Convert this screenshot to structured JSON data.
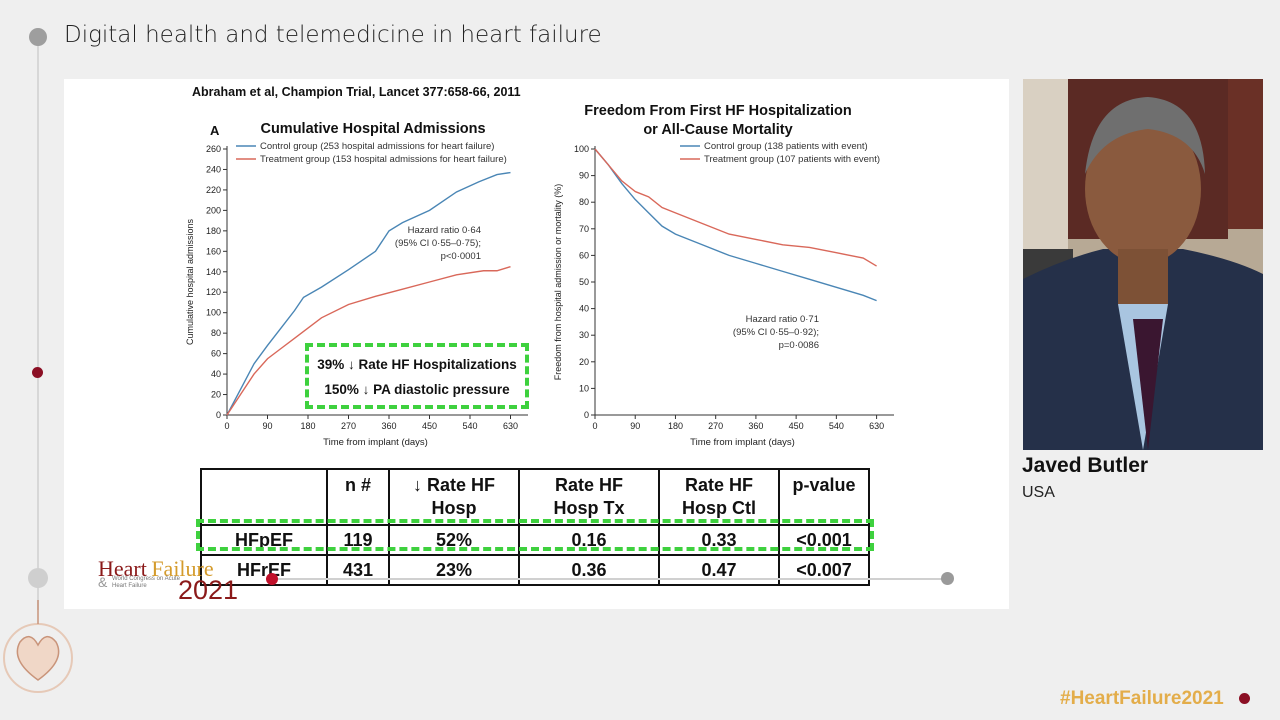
{
  "header": {
    "title": "Digital health and telemedicine in heart failure"
  },
  "slide": {
    "citation": "Abraham et al, Champion Trial, Lancet 377:658-66, 2011",
    "callout": {
      "line1": "39% ↓ Rate HF Hospitalizations",
      "line2": "150% ↓ PA diastolic pressure"
    },
    "table": {
      "headers": [
        "",
        "n #",
        "↓ Rate HF Hosp",
        "Rate HF Hosp Tx",
        "Rate HF Hosp Ctl",
        "p-value"
      ],
      "header_lines": [
        [
          "",
          ""
        ],
        [
          "n #",
          ""
        ],
        [
          "↓ Rate HF",
          "Hosp"
        ],
        [
          "Rate HF",
          "Hosp Tx"
        ],
        [
          "Rate HF",
          "Hosp Ctl"
        ],
        [
          "p-value",
          ""
        ]
      ],
      "rows": [
        [
          "HFpEF",
          "119",
          "52%",
          "0.16",
          "0.33",
          "<0.001"
        ],
        [
          "HFrEF",
          "431",
          "23%",
          "0.36",
          "0.47",
          "<0.007"
        ]
      ]
    }
  },
  "chart_data": [
    {
      "type": "line",
      "panel_label": "A",
      "title": "Cumulative Hospital Admissions",
      "xlabel": "Time from implant (days)",
      "ylabel": "Cumulative hospital admissions",
      "xticks": [
        0,
        90,
        180,
        270,
        360,
        450,
        540,
        630
      ],
      "yticks": [
        0,
        20,
        40,
        60,
        80,
        100,
        120,
        140,
        160,
        180,
        200,
        220,
        240,
        260
      ],
      "xlim": [
        0,
        660
      ],
      "ylim": [
        0,
        260
      ],
      "annotation": [
        "Hazard ratio 0·64",
        "(95% CI 0·55–0·75);",
        "p<0·0001"
      ],
      "series": [
        {
          "name": "Control group (253 hospital admissions for heart failure)",
          "color": "#4a86b5",
          "x": [
            0,
            30,
            60,
            90,
            120,
            150,
            170,
            210,
            270,
            330,
            360,
            390,
            450,
            510,
            560,
            600,
            630
          ],
          "y": [
            0,
            25,
            50,
            68,
            85,
            102,
            115,
            125,
            142,
            160,
            180,
            188,
            200,
            218,
            228,
            235,
            237
          ]
        },
        {
          "name": "Treatment group (153 hospital admissions for heart failure)",
          "color": "#d9685a",
          "x": [
            0,
            30,
            60,
            90,
            120,
            150,
            180,
            210,
            270,
            330,
            390,
            450,
            510,
            570,
            600,
            630
          ],
          "y": [
            0,
            20,
            40,
            55,
            65,
            75,
            85,
            95,
            108,
            116,
            123,
            130,
            137,
            141,
            141,
            145
          ]
        }
      ]
    },
    {
      "type": "line",
      "title": "Freedom From First HF Hospitalization or All-Cause Mortality",
      "xlabel": "Time from implant (days)",
      "ylabel": "Freedom from hospital admission or mortality (%)",
      "xticks": [
        0,
        90,
        180,
        270,
        360,
        450,
        540,
        630
      ],
      "yticks": [
        0,
        10,
        20,
        30,
        40,
        50,
        60,
        70,
        80,
        90,
        100
      ],
      "xlim": [
        0,
        660
      ],
      "ylim": [
        0,
        100
      ],
      "annotation": [
        "Hazard ratio 0·71",
        "(95% CI 0·55–0·92);",
        "p=0·0086"
      ],
      "series": [
        {
          "name": "Control group (138 patients with event)",
          "color": "#4a86b5",
          "x": [
            0,
            30,
            60,
            90,
            120,
            150,
            180,
            240,
            300,
            360,
            420,
            480,
            540,
            600,
            630
          ],
          "y": [
            100,
            94,
            87,
            81,
            76,
            71,
            68,
            64,
            60,
            57,
            54,
            51,
            48,
            45,
            43
          ]
        },
        {
          "name": "Treatment group (107 patients with event)",
          "color": "#d9685a",
          "x": [
            0,
            30,
            60,
            90,
            120,
            150,
            180,
            240,
            300,
            360,
            420,
            480,
            540,
            600,
            630
          ],
          "y": [
            100,
            94,
            88,
            84,
            82,
            78,
            76,
            72,
            68,
            66,
            64,
            63,
            61,
            59,
            56
          ]
        }
      ]
    }
  ],
  "logo": {
    "word1": "Heart",
    "word2": "Failure",
    "year": "2021",
    "amp": "&",
    "sub": "World Congress on Acute Heart Failure"
  },
  "speaker": {
    "name": "Javed Butler",
    "country": "USA"
  },
  "hashtag": "#HeartFailure2021",
  "colors": {
    "accent_red": "#8b0f24",
    "highlight_green": "#3ed13e",
    "hashtag_gold": "#e3ad4a"
  }
}
